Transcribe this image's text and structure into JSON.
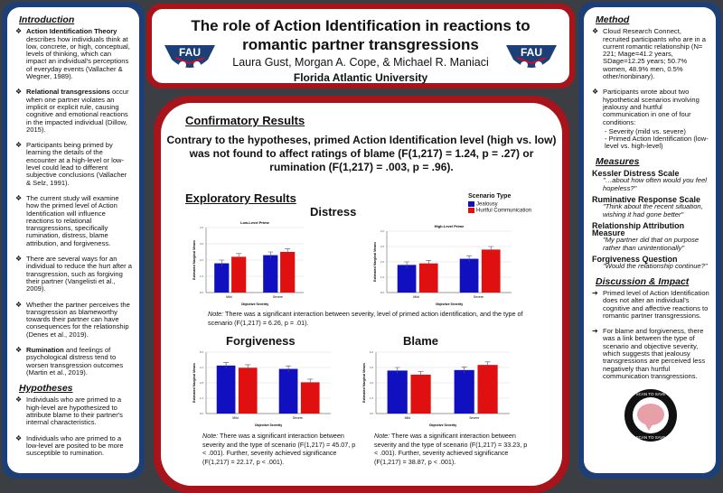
{
  "title": {
    "line1": "The role of Action Identification in reactions to",
    "line2": "romantic partner transgressions",
    "authors": "Laura Gust, Morgan A. Cope, & Michael R. Maniaci",
    "university": "Florida Atlantic University",
    "logo_text": "FAU"
  },
  "left": {
    "intro_heading": "Introduction",
    "intro": [
      {
        "bold": "Action Identification Theory",
        "text": " describes how individuals think at low, concrete, or high, conceptual, levels of thinking, which can impact an individual's perceptions of everyday events (Vallacher & Wegner, 1989)."
      },
      {
        "bold": "Relational transgressions",
        "text": " occur when one partner violates an implicit or explicit rule, causing cognitive and emotional reactions in the impacted individual (Dillow, 2015)."
      },
      {
        "bold": "",
        "text": "Participants being primed by learning the details of the encounter at a high-level or low-level could lead to different subjective conclusions (Vallacher & Selz, 1991)."
      },
      {
        "bold": "",
        "text": "The current study will examine how the primed level of Action Identification will influence reactions to relational transgressions, specifically rumination, distress, blame attribution, and forgiveness."
      },
      {
        "bold": "",
        "text": "There are several ways for an individual to reduce the hurt after a transgression, such as forgiving their partner (Vangelisti et al., 2009)."
      },
      {
        "bold": "",
        "text": "Whether the partner perceives the transgression as blameworthy towards their partner can have consequences for the relationship (Denes et al., 2019)."
      },
      {
        "bold": "Rumination",
        "text": " and feelings of psychological distress tend to worsen transgression outcomes (Martin et al., 2019)."
      }
    ],
    "hyp_heading": "Hypotheses",
    "hypotheses": [
      "Individuals who are primed to a high-level are hypothesized to attribute blame to their partner's internal characteristics.",
      "Individuals who are primed to a low-level are posited to be more susceptible to rumination."
    ]
  },
  "right": {
    "method_heading": "Method",
    "method": [
      "Cloud Research Connect, recruited participants who are in a current romantic relationship (N= 221; Mage=41.2 years, SDage=12.25 years; 50.7% women, 48.9% men, 0.5% other/nonbinary).",
      "Participants wrote about two hypothetical scenarios involving jealousy and hurtful communication in one of four conditions:",
      "- Severity (mild vs. severe)",
      "- Primed Action Identification (low-level vs. high-level)"
    ],
    "measures_heading": "Measures",
    "measures": [
      {
        "name": "Kessler Distress Scale",
        "quote": "\"…about how often would you feel hopeless?\""
      },
      {
        "name": "Ruminative Response Scale",
        "quote": "\"Think about the recent situation, wishing it had gone better\""
      },
      {
        "name": "Relationship Attribution Measure",
        "quote": "\"My partner did that on purpose rather than unintentionally\""
      },
      {
        "name": "Forgiveness Question",
        "quote": "\"Would the relationship continue?\""
      }
    ],
    "disc_heading": "Discussion & Impact",
    "discussion": [
      "Primed level of Action Identification does not alter an individual's cognitive and affective reactions to romantic partner transgressions.",
      "For blame and forgiveness, there was a link between the type of scenario and objective severity, which suggests that jealousy transgressions are perceived less negatively than hurtful communication transgressions."
    ],
    "badge_top": "SCAN TO SAVE",
    "badge_bottom": "SCAN TO SAVE"
  },
  "center": {
    "confirm_heading": "Confirmatory Results",
    "confirm_text": "Contrary to the hypotheses, primed Action Identification level (high vs. low) was not found to affect ratings of blame (F(1,217) = 1.24, p = .27) or rumination (F(1,217) = .003, p = .96).",
    "explor_heading": "Exploratory Results",
    "distress_heading": "Distress",
    "forgiveness_heading": "Forgiveness",
    "blame_heading": "Blame",
    "legend_title": "Scenario Type",
    "note_label": "Note:",
    "distress_note": " There was a significant interaction between severity, level of primed action identification, and the type of scenario (F(1,217) = 6.26, p = .01).",
    "forgiveness_note": " There was a significant interaction between severity and the type of scenario (F(1,217) = 45.07, p < .001). Further, severity achieved significance (F(1,217) = 22.17, p < .001).",
    "blame_note": " There was a significant interaction between severity and the type of scenario (F(1,217) = 33.23, p < .001). Further, severity achieved significance (F(1,217) = 38.87, p < .001)."
  },
  "chart_data": [
    {
      "type": "bar",
      "id": "distress-low",
      "title": "Low-Level Prime",
      "xlabel": "Objective Severity",
      "ylabel": "Estimated Marginal Means",
      "categories": [
        "Mild",
        "Severe"
      ],
      "ylim": [
        0,
        4
      ],
      "series": [
        {
          "name": "Jealousy",
          "color": "#1010c0",
          "values": [
            1.8,
            2.3
          ]
        },
        {
          "name": "Hurtful Communication",
          "color": "#e01010",
          "values": [
            2.2,
            2.5
          ]
        }
      ]
    },
    {
      "type": "bar",
      "id": "distress-high",
      "title": "High-Level Prime",
      "xlabel": "Objective Severity",
      "ylabel": "Estimated Marginal Means",
      "categories": [
        "Mild",
        "Severe"
      ],
      "ylim": [
        0,
        4
      ],
      "series": [
        {
          "name": "Jealousy",
          "color": "#1010c0",
          "values": [
            1.8,
            2.2
          ]
        },
        {
          "name": "Hurtful Communication",
          "color": "#e01010",
          "values": [
            1.9,
            2.8
          ]
        }
      ]
    },
    {
      "type": "bar",
      "id": "forgiveness",
      "title": "",
      "xlabel": "Objective Severity",
      "ylabel": "Estimated Marginal Means",
      "categories": [
        "Mild",
        "Severe"
      ],
      "ylim": [
        0,
        5.5
      ],
      "series": [
        {
          "name": "Jealousy",
          "color": "#1010c0",
          "values": [
            4.3,
            4.0
          ]
        },
        {
          "name": "Hurtful Communication",
          "color": "#e01010",
          "values": [
            4.1,
            2.8
          ]
        }
      ]
    },
    {
      "type": "bar",
      "id": "blame",
      "title": "",
      "xlabel": "Objective Severity",
      "ylabel": "Estimated Marginal Means",
      "categories": [
        "Mild",
        "Severe"
      ],
      "ylim": [
        0,
        6
      ],
      "series": [
        {
          "name": "Jealousy",
          "color": "#1010c0",
          "values": [
            4.2,
            4.25
          ]
        },
        {
          "name": "Hurtful Communication",
          "color": "#e01010",
          "values": [
            3.8,
            4.75
          ]
        }
      ]
    }
  ]
}
